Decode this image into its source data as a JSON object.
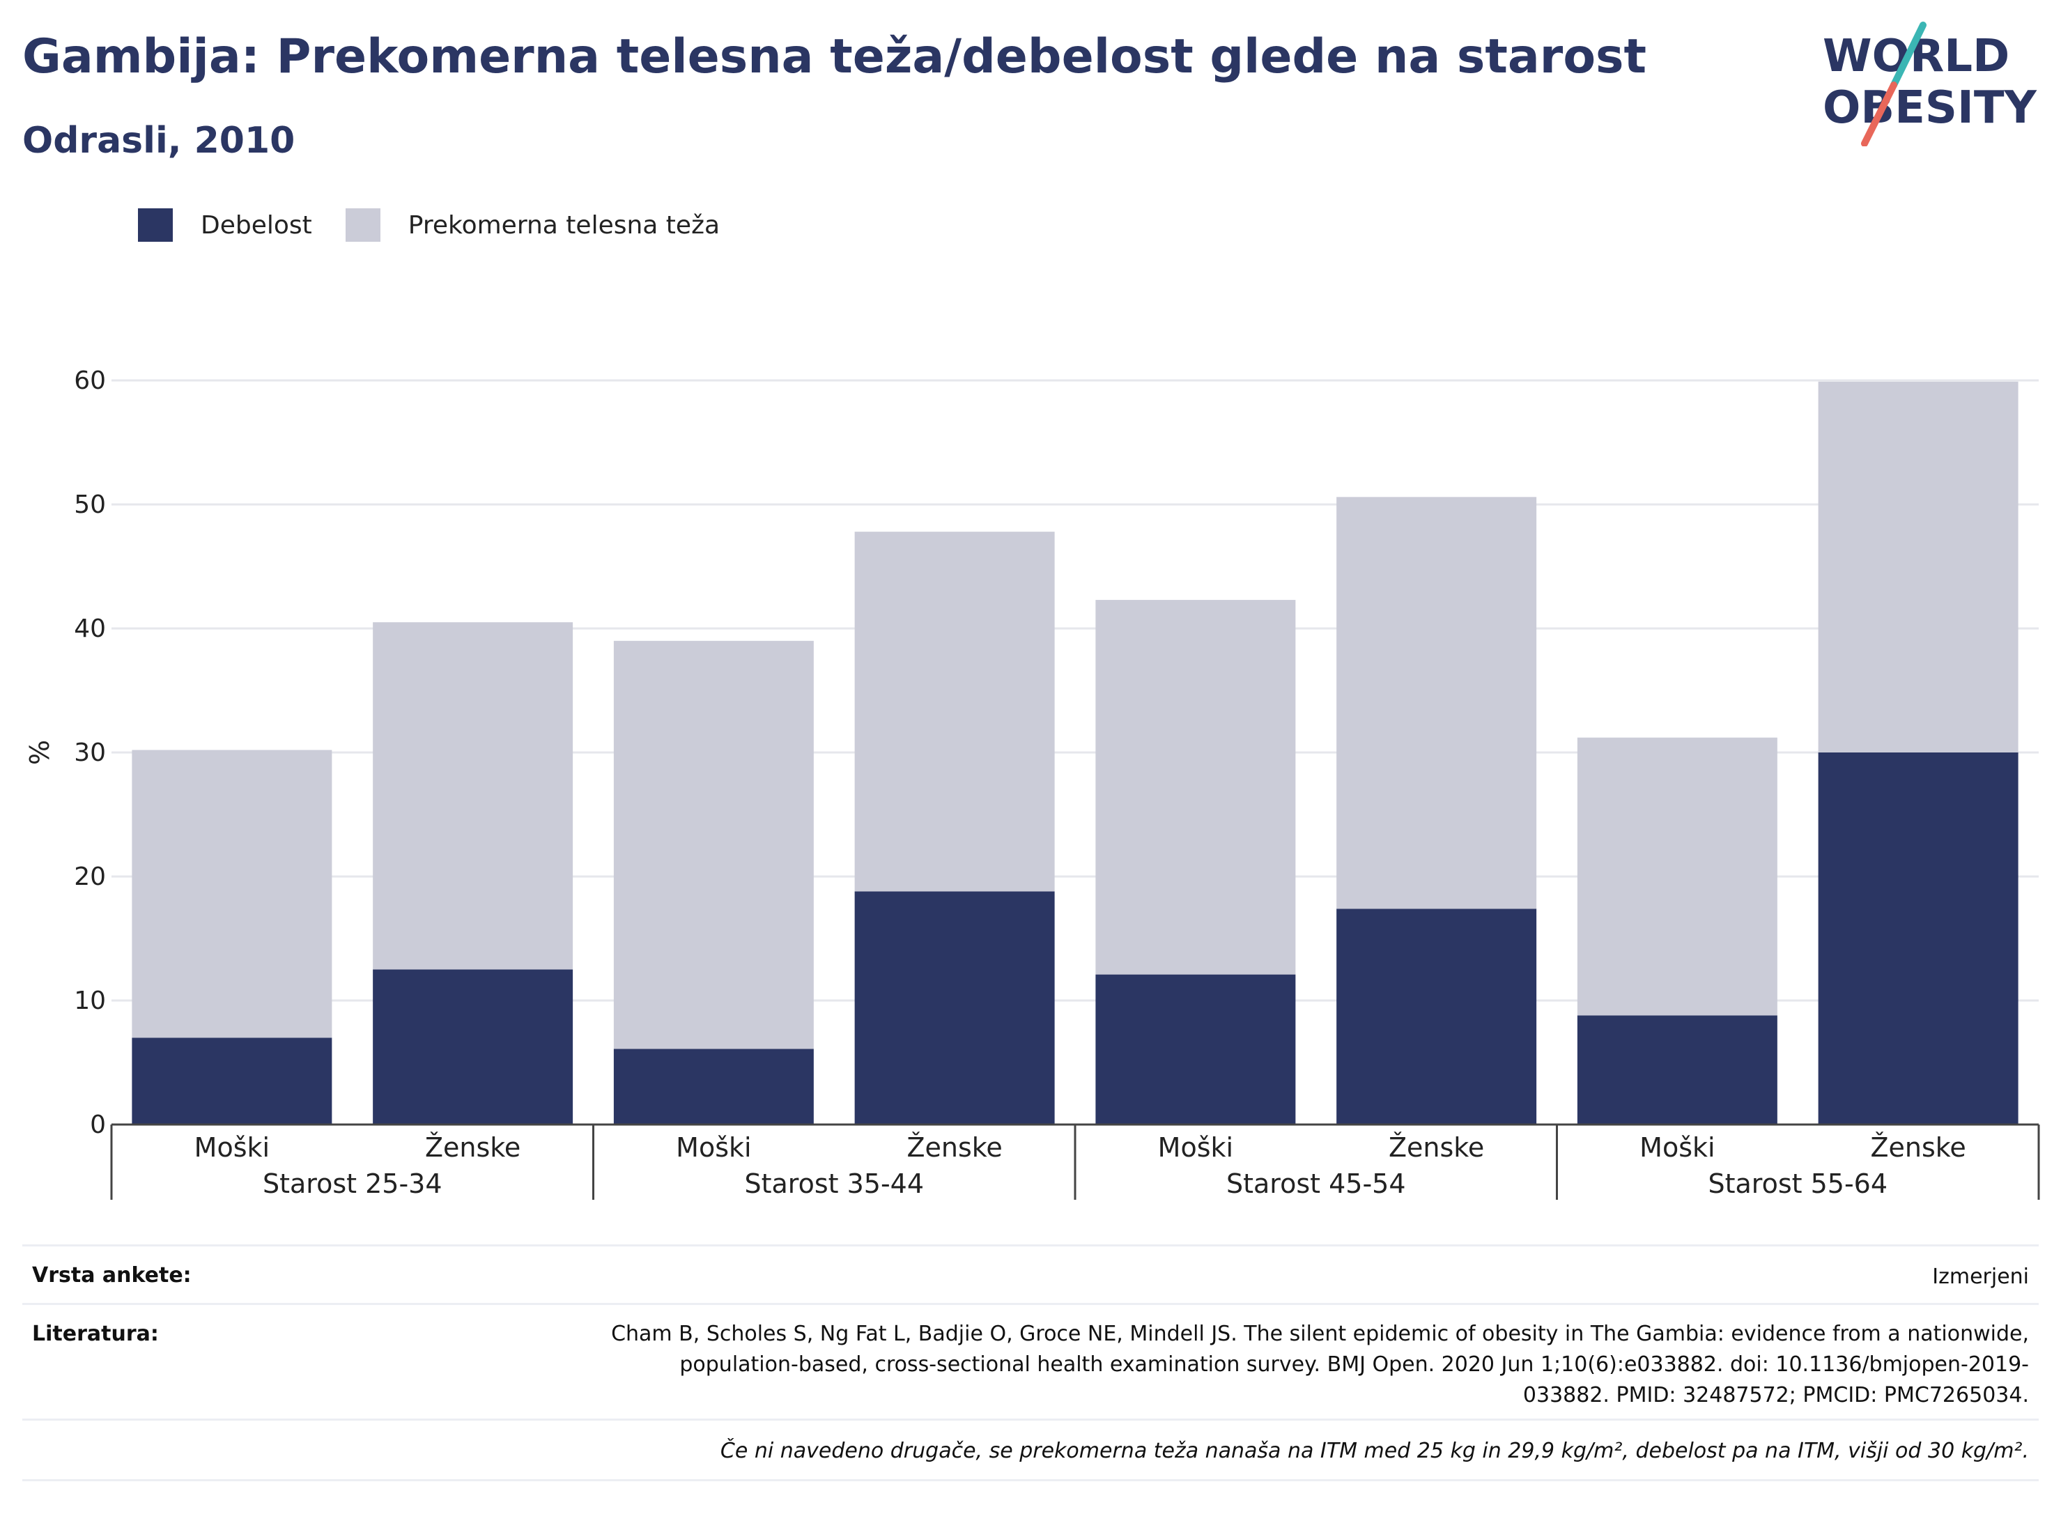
{
  "header": {
    "title": "Gambija: Prekomerna telesna teža/debelost glede na starost",
    "subtitle": "Odrasli, 2010"
  },
  "logo": {
    "line1": "WORLD",
    "line2": "OBESITY",
    "accent_teal": "#3bb6b4",
    "accent_coral": "#e8675a"
  },
  "legend": {
    "items": [
      {
        "label": "Debelost",
        "color": "#2b3663"
      },
      {
        "label": "Prekomerna telesna teža",
        "color": "#cbccd8"
      }
    ]
  },
  "chart_data": {
    "type": "bar",
    "stacked": true,
    "ylabel": "%",
    "ylim": [
      0,
      60
    ],
    "yticks": [
      0,
      10,
      20,
      30,
      40,
      50,
      60
    ],
    "grid": true,
    "legend_position": "top-left",
    "groups": [
      "Starost 25-34",
      "Starost 35-44",
      "Starost 45-54",
      "Starost 55-64"
    ],
    "categories": [
      "Moški",
      "Ženske",
      "Moški",
      "Ženske",
      "Moški",
      "Ženske",
      "Moški",
      "Ženske"
    ],
    "series": [
      {
        "name": "Debelost",
        "color": "#2b3663",
        "values": [
          7.0,
          12.5,
          6.1,
          18.8,
          12.1,
          17.4,
          8.8,
          30.0
        ]
      },
      {
        "name": "Prekomerna telesna teža",
        "color": "#cbccd8",
        "values": [
          23.2,
          28.0,
          32.9,
          29.0,
          30.2,
          33.2,
          22.4,
          29.9
        ]
      }
    ]
  },
  "footer": {
    "survey_label": "Vrsta ankete:",
    "survey_value": "Izmerjeni",
    "ref_label": "Literatura:",
    "ref_lines": [
      "Cham B, Scholes S, Ng Fat L, Badjie O, Groce NE, Mindell JS. The silent epidemic of obesity in The Gambia: evidence from a nationwide,",
      "population-based, cross-sectional health examination survey. BMJ Open. 2020 Jun 1;10(6):e033882. doi: 10.1136/bmjopen-2019-",
      "033882. PMID: 32487572; PMCID: PMC7265034."
    ],
    "note": "Če ni navedeno drugače, se prekomerna teža nanaša na ITM med 25 kg in 29,9 kg/m², debelost pa na ITM, višji od 30 kg/m²."
  }
}
